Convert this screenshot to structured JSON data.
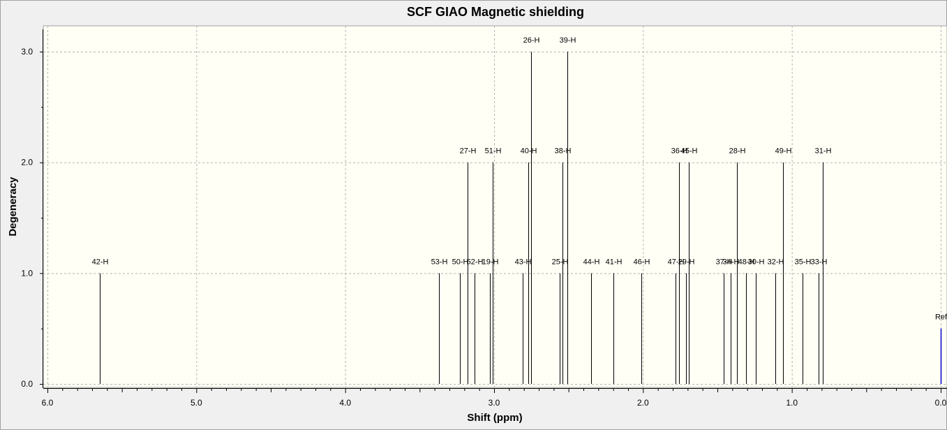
{
  "chart_data": {
    "type": "bar",
    "title": "SCF GIAO Magnetic shielding",
    "xlabel": "Shift (ppm)",
    "ylabel": "Degeneracy",
    "xlim": [
      6.0,
      0.0
    ],
    "ylim": [
      0.0,
      3.2
    ],
    "x_reversed": true,
    "x_ticks": [
      "6.0",
      "5.0",
      "4.0",
      "3.0",
      "2.0",
      "1.0",
      "0.0"
    ],
    "y_ticks": [
      "0.0",
      "1.0",
      "2.0",
      "3.0"
    ],
    "grid": true,
    "peaks": [
      {
        "label": "42-H",
        "shift": 5.65,
        "degeneracy": 1
      },
      {
        "label": "53-H",
        "shift": 3.37,
        "degeneracy": 1
      },
      {
        "label": "50-H",
        "shift": 3.23,
        "degeneracy": 1
      },
      {
        "label": "27-H",
        "shift": 3.18,
        "degeneracy": 2
      },
      {
        "label": "52-H",
        "shift": 3.13,
        "degeneracy": 1
      },
      {
        "label": "19-H",
        "shift": 3.03,
        "degeneracy": 1
      },
      {
        "label": "51-H",
        "shift": 3.01,
        "degeneracy": 2
      },
      {
        "label": "43-H",
        "shift": 2.81,
        "degeneracy": 1
      },
      {
        "label": "40-H",
        "shift": 2.77,
        "degeneracy": 2
      },
      {
        "label": "26-H",
        "shift": 2.75,
        "degeneracy": 3
      },
      {
        "label": "25-H",
        "shift": 2.56,
        "degeneracy": 1
      },
      {
        "label": "38-H",
        "shift": 2.54,
        "degeneracy": 2
      },
      {
        "label": "39-H",
        "shift": 2.51,
        "degeneracy": 3
      },
      {
        "label": "44-H",
        "shift": 2.35,
        "degeneracy": 1
      },
      {
        "label": "41-H",
        "shift": 2.2,
        "degeneracy": 1
      },
      {
        "label": "46-H",
        "shift": 2.01,
        "degeneracy": 1
      },
      {
        "label": "47-H",
        "shift": 1.78,
        "degeneracy": 1
      },
      {
        "label": "36-H",
        "shift": 1.76,
        "degeneracy": 2
      },
      {
        "label": "29-H",
        "shift": 1.71,
        "degeneracy": 1
      },
      {
        "label": "45-H",
        "shift": 1.69,
        "degeneracy": 2
      },
      {
        "label": "37-H",
        "shift": 1.46,
        "degeneracy": 1
      },
      {
        "label": "34-H",
        "shift": 1.41,
        "degeneracy": 1
      },
      {
        "label": "28-H",
        "shift": 1.37,
        "degeneracy": 2
      },
      {
        "label": "48-H",
        "shift": 1.31,
        "degeneracy": 1
      },
      {
        "label": "30-H",
        "shift": 1.24,
        "degeneracy": 1
      },
      {
        "label": "32-H",
        "shift": 1.11,
        "degeneracy": 1
      },
      {
        "label": "49-H",
        "shift": 1.06,
        "degeneracy": 2
      },
      {
        "label": "35-H",
        "shift": 0.93,
        "degeneracy": 1
      },
      {
        "label": "33-H",
        "shift": 0.82,
        "degeneracy": 1
      },
      {
        "label": "31-H",
        "shift": 0.79,
        "degeneracy": 2
      },
      {
        "label": "Ref",
        "shift": 0.0,
        "degeneracy": 0.5
      }
    ],
    "colors": {
      "plot_background": "#fffff5",
      "frame_background": "#f0f0f0",
      "peak": "#000000",
      "reference_peak": "#0000cc",
      "grid": "#b4b4b4"
    }
  }
}
